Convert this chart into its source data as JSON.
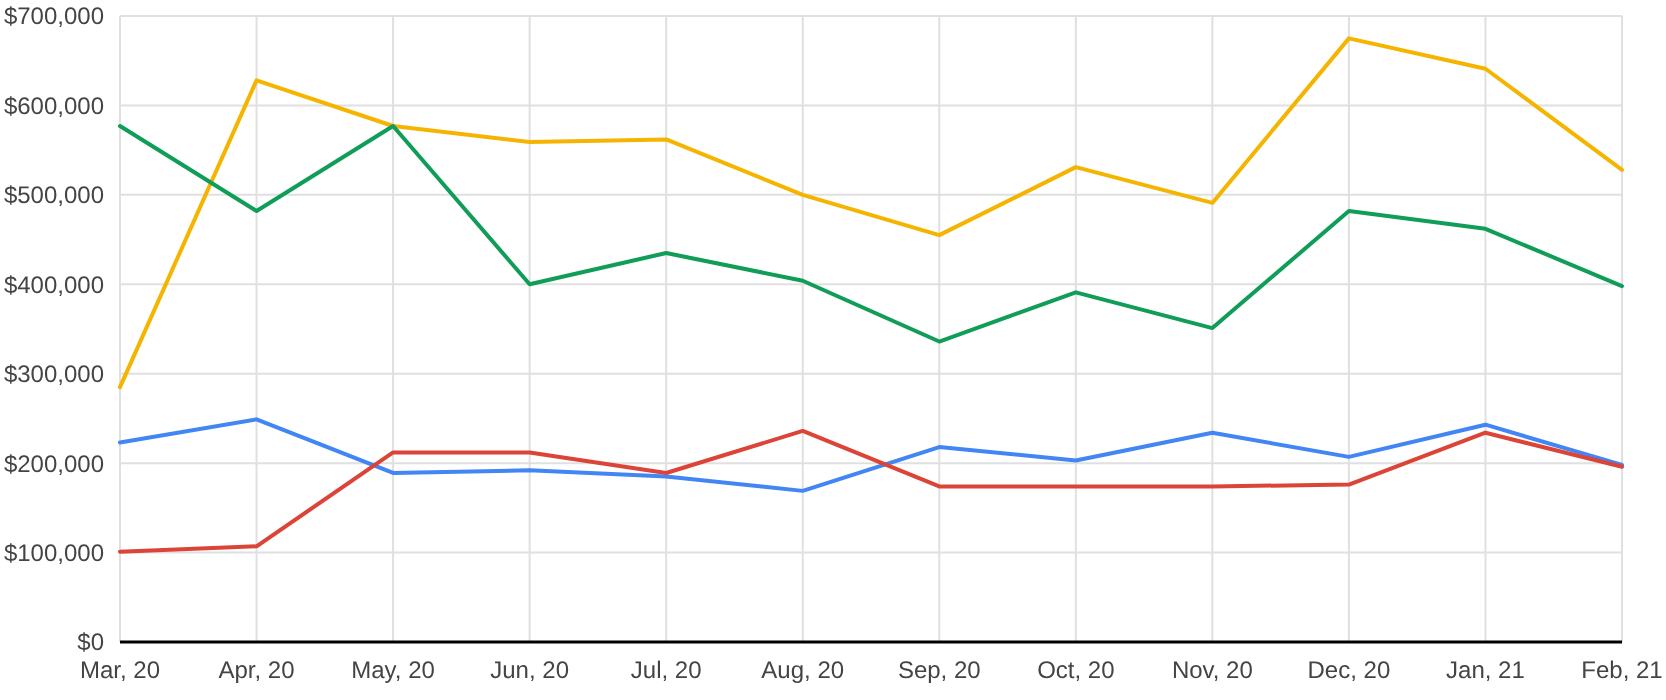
{
  "chart_data": {
    "type": "line",
    "categories": [
      "Mar, 20",
      "Apr, 20",
      "May, 20",
      "Jun, 20",
      "Jul, 20",
      "Aug, 20",
      "Sep, 20",
      "Oct, 20",
      "Nov, 20",
      "Dec, 20",
      "Jan, 21",
      "Feb, 21"
    ],
    "series": [
      {
        "color": "#f4b400",
        "values": [
          285000,
          628000,
          577000,
          559000,
          562000,
          500000,
          455000,
          531000,
          491000,
          675000,
          641000,
          528000
        ]
      },
      {
        "color": "#0f9d58",
        "values": [
          577000,
          482000,
          577000,
          400000,
          435000,
          404000,
          336000,
          391000,
          351000,
          482000,
          462000,
          398000
        ]
      },
      {
        "color": "#4285f4",
        "values": [
          223000,
          249000,
          189000,
          192000,
          185000,
          169000,
          218000,
          203000,
          234000,
          207000,
          243000,
          198000
        ]
      },
      {
        "color": "#db4437",
        "values": [
          101000,
          107000,
          212000,
          212000,
          189000,
          236000,
          174000,
          174000,
          174000,
          176000,
          234000,
          196000
        ]
      }
    ],
    "ylim": [
      0,
      700000
    ],
    "yticks": [
      {
        "value": 0,
        "label": "$0"
      },
      {
        "value": 100000,
        "label": "$100,000"
      },
      {
        "value": 200000,
        "label": "$200,000"
      },
      {
        "value": 300000,
        "label": "$300,000"
      },
      {
        "value": 400000,
        "label": "$400,000"
      },
      {
        "value": 500000,
        "label": "$500,000"
      },
      {
        "value": 600000,
        "label": "$600,000"
      },
      {
        "value": 700000,
        "label": "$700,000"
      }
    ],
    "grid": true,
    "marker": "none",
    "line_style": "solid"
  }
}
